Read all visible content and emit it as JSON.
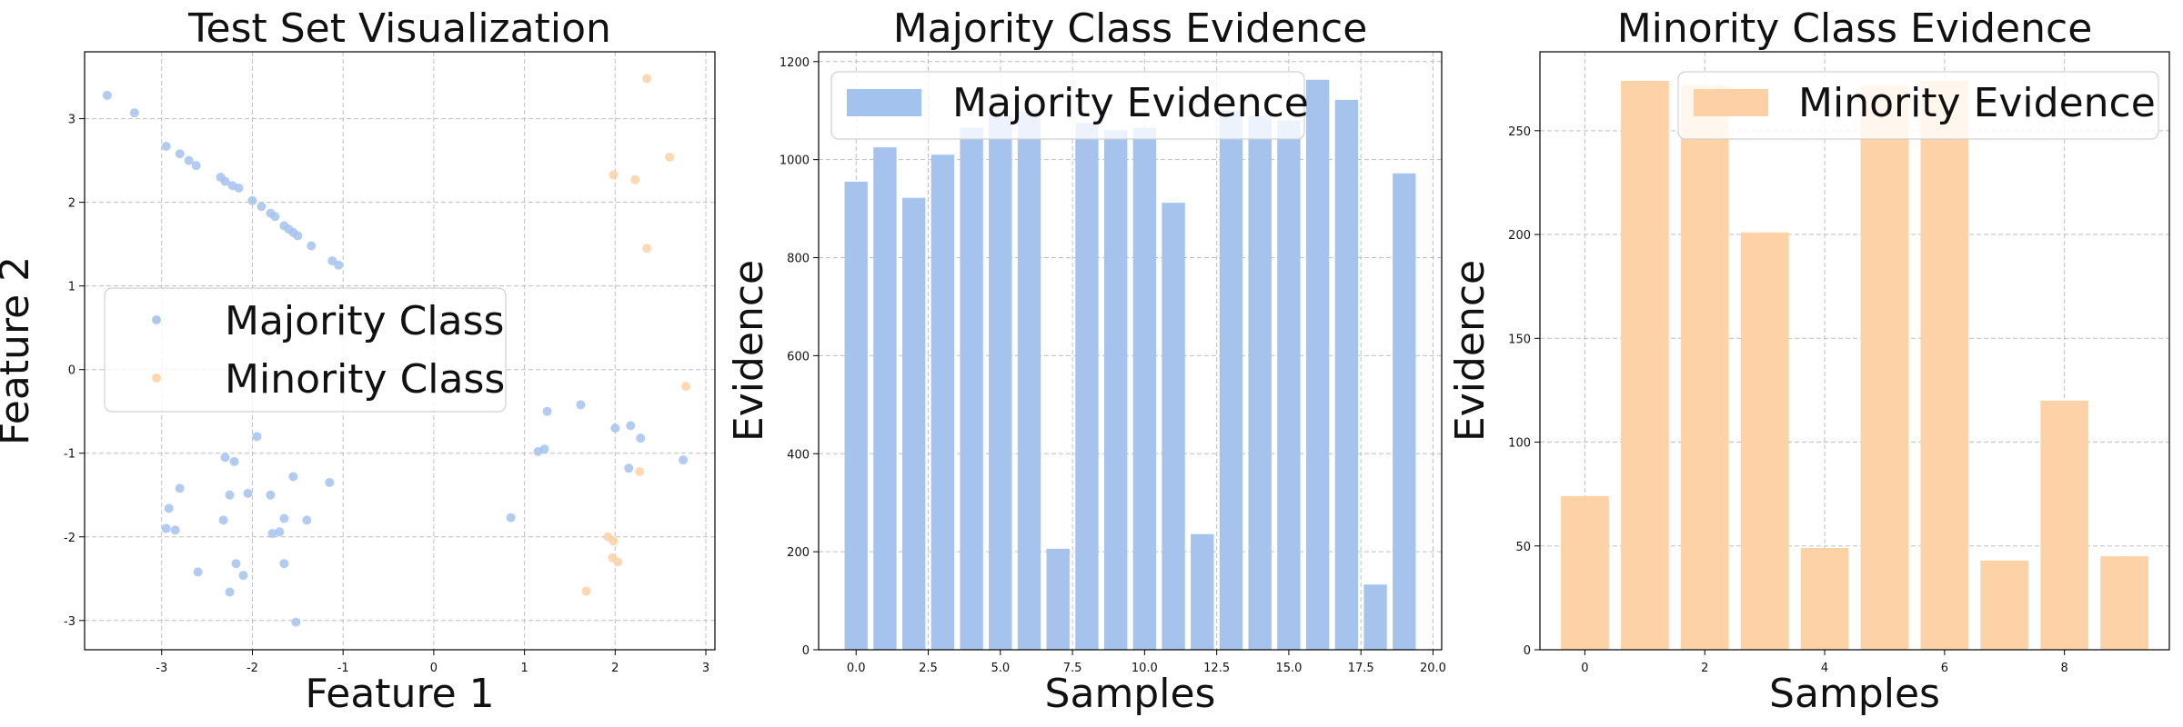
{
  "chart_data": [
    {
      "type": "scatter",
      "title": "Test Set Visualization",
      "xlabel": "Feature 1",
      "ylabel": "Feature 2",
      "xlim": [
        -3.85,
        3.1
      ],
      "ylim": [
        -3.35,
        3.8
      ],
      "xticks": [
        -3,
        -2,
        -1,
        0,
        1,
        2,
        3
      ],
      "yticks": [
        -3,
        -2,
        -1,
        0,
        1,
        2,
        3
      ],
      "grid": true,
      "legend_position": "center-left",
      "series": [
        {
          "name": "Majority Class",
          "color": "#a4c2ee",
          "points": [
            [
              -3.6,
              3.28
            ],
            [
              -3.3,
              3.07
            ],
            [
              -2.95,
              2.67
            ],
            [
              -2.8,
              2.58
            ],
            [
              -2.7,
              2.5
            ],
            [
              -2.62,
              2.44
            ],
            [
              -2.35,
              2.3
            ],
            [
              -2.3,
              2.25
            ],
            [
              -2.22,
              2.2
            ],
            [
              -2.15,
              2.17
            ],
            [
              -2.0,
              2.02
            ],
            [
              -1.9,
              1.95
            ],
            [
              -1.8,
              1.87
            ],
            [
              -1.75,
              1.83
            ],
            [
              -1.65,
              1.72
            ],
            [
              -1.6,
              1.68
            ],
            [
              -1.55,
              1.64
            ],
            [
              -1.5,
              1.6
            ],
            [
              -1.35,
              1.48
            ],
            [
              -1.12,
              1.3
            ],
            [
              -1.05,
              1.25
            ],
            [
              -1.95,
              -0.8
            ],
            [
              -2.3,
              -1.05
            ],
            [
              -2.2,
              -1.1
            ],
            [
              -1.15,
              -1.35
            ],
            [
              -2.8,
              -1.42
            ],
            [
              -2.05,
              -1.48
            ],
            [
              -2.25,
              -1.5
            ],
            [
              -1.8,
              -1.5
            ],
            [
              -1.55,
              -1.28
            ],
            [
              -2.92,
              -1.66
            ],
            [
              -1.4,
              -1.8
            ],
            [
              -1.65,
              -1.78
            ],
            [
              -2.32,
              -1.8
            ],
            [
              -2.95,
              -1.9
            ],
            [
              -2.85,
              -1.92
            ],
            [
              -1.78,
              -1.96
            ],
            [
              -1.7,
              -1.94
            ],
            [
              -2.6,
              -2.42
            ],
            [
              -2.1,
              -2.46
            ],
            [
              -2.18,
              -2.32
            ],
            [
              -1.65,
              -2.32
            ],
            [
              -2.25,
              -2.66
            ],
            [
              -1.52,
              -3.02
            ],
            [
              0.85,
              -1.77
            ],
            [
              1.15,
              -0.98
            ],
            [
              1.22,
              -0.95
            ],
            [
              1.25,
              -0.5
            ],
            [
              1.62,
              -0.42
            ],
            [
              2.0,
              -0.7
            ],
            [
              2.17,
              -0.67
            ],
            [
              2.28,
              -0.82
            ],
            [
              2.15,
              -1.18
            ],
            [
              2.75,
              -1.08
            ]
          ]
        },
        {
          "name": "Minority Class",
          "color": "#fdd1a5",
          "points": [
            [
              2.35,
              3.48
            ],
            [
              2.6,
              2.54
            ],
            [
              1.98,
              2.33
            ],
            [
              2.22,
              2.27
            ],
            [
              2.35,
              1.45
            ],
            [
              2.78,
              -0.2
            ],
            [
              2.27,
              -1.22
            ],
            [
              1.92,
              -2.0
            ],
            [
              1.98,
              -2.05
            ],
            [
              1.97,
              -2.25
            ],
            [
              2.03,
              -2.3
            ],
            [
              1.68,
              -2.65
            ]
          ]
        }
      ]
    },
    {
      "type": "bar",
      "title": "Majority Class Evidence",
      "xlabel": "Samples",
      "ylabel": "Evidence",
      "color": "#a4c2ee",
      "xlim": [
        -1.3,
        20.3
      ],
      "ylim": [
        0,
        1220
      ],
      "xticks": [
        "0.0",
        "2.5",
        "5.0",
        "7.5",
        "10.0",
        "12.5",
        "15.0",
        "17.5",
        "20.0"
      ],
      "yticks": [
        0,
        200,
        400,
        600,
        800,
        1000,
        1200
      ],
      "grid": true,
      "legend_position": "top-left",
      "series": [
        {
          "name": "Majority Evidence",
          "categories": [
            0,
            1,
            2,
            3,
            4,
            5,
            6,
            7,
            8,
            9,
            10,
            11,
            12,
            13,
            14,
            15,
            16,
            17,
            18,
            19
          ],
          "values": [
            955,
            1025,
            922,
            1010,
            1065,
            1090,
            1100,
            206,
            1075,
            1060,
            1065,
            912,
            236,
            1100,
            1090,
            1080,
            1163,
            1122,
            133,
            972
          ]
        }
      ]
    },
    {
      "type": "bar",
      "title": "Minority Class Evidence",
      "xlabel": "Samples",
      "ylabel": "Evidence",
      "color": "#fdd1a5",
      "xlim": [
        -0.75,
        9.75
      ],
      "ylim": [
        0,
        288
      ],
      "xticks": [
        "0",
        "2",
        "4",
        "6",
        "8"
      ],
      "yticks": [
        0,
        50,
        100,
        150,
        200,
        250
      ],
      "grid": true,
      "legend_position": "top-right",
      "series": [
        {
          "name": "Minority Evidence",
          "categories": [
            0,
            1,
            2,
            3,
            4,
            5,
            6,
            7,
            8,
            9
          ],
          "values": [
            74,
            274,
            272,
            201,
            49,
            272,
            274,
            43,
            120,
            45
          ]
        }
      ]
    }
  ]
}
